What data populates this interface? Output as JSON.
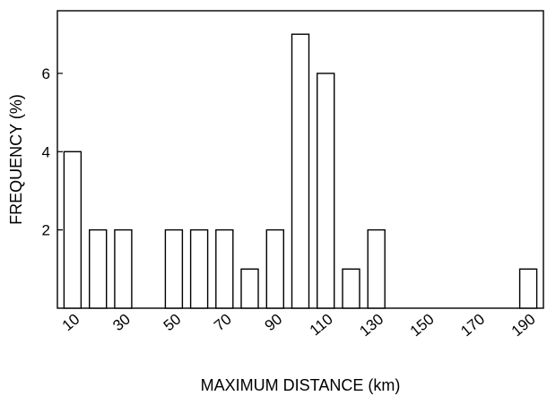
{
  "chart_data": {
    "type": "bar",
    "xlabel": "MAXIMUM DISTANCE (km)",
    "ylabel": "FREQUENCY (%)",
    "categories": [
      10,
      20,
      30,
      40,
      50,
      60,
      70,
      80,
      90,
      100,
      110,
      120,
      130,
      140,
      150,
      160,
      170,
      180,
      190
    ],
    "values": [
      4,
      2,
      2,
      0,
      2,
      2,
      2,
      1,
      2,
      7,
      6,
      1,
      2,
      0,
      0,
      0,
      0,
      0,
      1
    ],
    "x_tick_labels": [
      "10",
      "30",
      "50",
      "70",
      "90",
      "110",
      "130",
      "150",
      "170",
      "190"
    ],
    "y_tick_labels": [
      "2",
      "4",
      "6"
    ],
    "y_ticks": [
      2,
      4,
      6
    ],
    "ylim": [
      0,
      7.6
    ],
    "xlim": [
      4,
      196
    ],
    "grid": false,
    "legend": false,
    "bar_fill": "#ffffff",
    "bar_stroke": "#000000"
  }
}
